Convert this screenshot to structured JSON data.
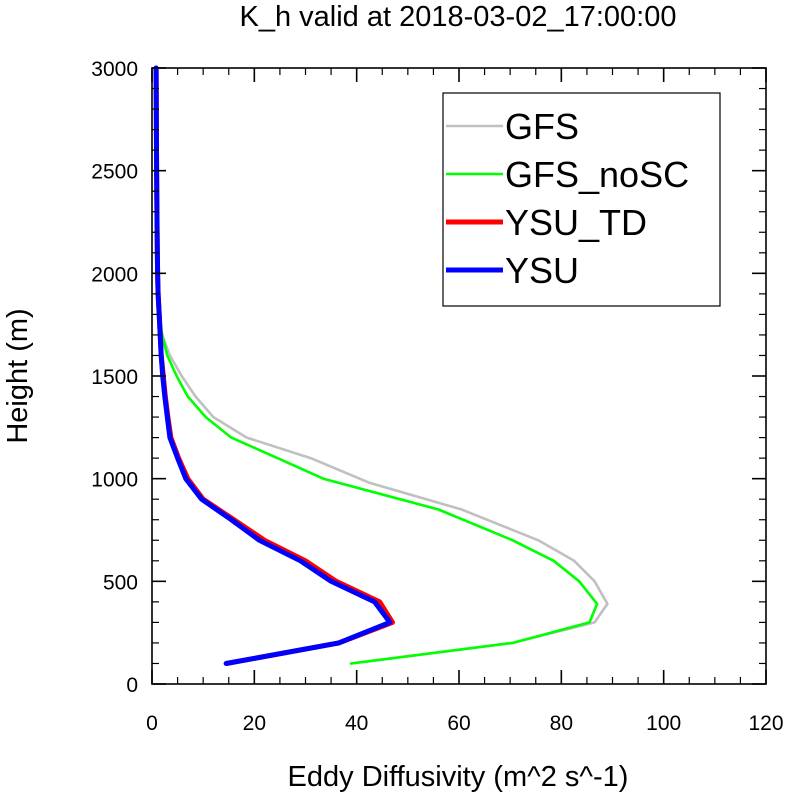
{
  "chart_data": {
    "type": "line",
    "title": "K_h valid at 2018-03-02_17:00:00",
    "xlabel": "Eddy Diffusivity (m^2 s^-1)",
    "ylabel": "Height (m)",
    "xlim": [
      0,
      120
    ],
    "ylim": [
      0,
      3000
    ],
    "xticks": [
      0,
      20,
      40,
      60,
      80,
      100,
      120
    ],
    "yticks": [
      0,
      500,
      1000,
      1500,
      2000,
      2500,
      3000
    ],
    "xtick_labels": [
      "0",
      "20",
      "40",
      "60",
      "80",
      "100",
      "120"
    ],
    "ytick_labels": [
      "0",
      "500",
      "1000",
      "1500",
      "2000",
      "2500",
      "3000"
    ],
    "grid": false,
    "legend_position": "top-right",
    "series": [
      {
        "name": "GFS",
        "color": "#c0c0c0",
        "width": "thin",
        "points": [
          [
            38.9,
            100
          ],
          [
            70.5,
            200
          ],
          [
            86.5,
            300
          ],
          [
            89,
            390
          ],
          [
            86.5,
            500
          ],
          [
            82.5,
            600
          ],
          [
            75.5,
            700
          ],
          [
            60.5,
            850
          ],
          [
            42.5,
            980
          ],
          [
            31,
            1100
          ],
          [
            18.5,
            1200
          ],
          [
            12,
            1300
          ],
          [
            8.5,
            1400
          ],
          [
            5.8,
            1500
          ],
          [
            3.5,
            1600
          ],
          [
            2,
            1700
          ],
          [
            1.4,
            1800
          ],
          [
            1.1,
            2000
          ],
          [
            1,
            2200
          ],
          [
            0.9,
            2500
          ],
          [
            0.8,
            3000
          ]
        ]
      },
      {
        "name": "GFS_noSC",
        "color": "#00ff00",
        "width": "thin",
        "points": [
          [
            38.9,
            100
          ],
          [
            70.5,
            200
          ],
          [
            85.5,
            300
          ],
          [
            87,
            390
          ],
          [
            83.5,
            500
          ],
          [
            78.5,
            600
          ],
          [
            70.5,
            700
          ],
          [
            56,
            850
          ],
          [
            33.5,
            1000
          ],
          [
            24.5,
            1100
          ],
          [
            15.5,
            1200
          ],
          [
            10.5,
            1300
          ],
          [
            7,
            1400
          ],
          [
            4.8,
            1500
          ],
          [
            3,
            1600
          ],
          [
            2,
            1700
          ],
          [
            1.4,
            1800
          ],
          [
            1.1,
            2000
          ],
          [
            1,
            2200
          ],
          [
            0.9,
            2500
          ],
          [
            0.8,
            3000
          ]
        ]
      },
      {
        "name": "YSU_TD",
        "color": "#ff0000",
        "width": "thick",
        "points": [
          [
            14.5,
            100
          ],
          [
            36.5,
            200
          ],
          [
            47,
            300
          ],
          [
            44.5,
            400
          ],
          [
            36,
            500
          ],
          [
            30,
            600
          ],
          [
            22,
            700
          ],
          [
            16,
            800
          ],
          [
            10,
            900
          ],
          [
            7,
            1000
          ],
          [
            5.2,
            1100
          ],
          [
            3.7,
            1200
          ],
          [
            3.1,
            1300
          ],
          [
            2.6,
            1400
          ],
          [
            2.2,
            1500
          ],
          [
            1.8,
            1600
          ],
          [
            1.6,
            1700
          ],
          [
            1.4,
            1800
          ],
          [
            1.2,
            1900
          ],
          [
            1.1,
            2000
          ],
          [
            1,
            2200
          ],
          [
            0.9,
            2500
          ],
          [
            0.8,
            3000
          ]
        ]
      },
      {
        "name": "YSU",
        "color": "#0000ff",
        "width": "thick",
        "points": [
          [
            14.5,
            100
          ],
          [
            36.5,
            200
          ],
          [
            46.5,
            300
          ],
          [
            43.5,
            400
          ],
          [
            35,
            500
          ],
          [
            29,
            600
          ],
          [
            21,
            700
          ],
          [
            15.5,
            800
          ],
          [
            9.7,
            900
          ],
          [
            6.6,
            1000
          ],
          [
            5,
            1100
          ],
          [
            3.5,
            1200
          ],
          [
            3,
            1300
          ],
          [
            2.5,
            1400
          ],
          [
            2.1,
            1500
          ],
          [
            1.8,
            1600
          ],
          [
            1.6,
            1700
          ],
          [
            1.4,
            1800
          ],
          [
            1.2,
            1900
          ],
          [
            1.1,
            2000
          ],
          [
            1,
            2200
          ],
          [
            0.9,
            2500
          ],
          [
            0.8,
            3000
          ]
        ]
      }
    ]
  }
}
